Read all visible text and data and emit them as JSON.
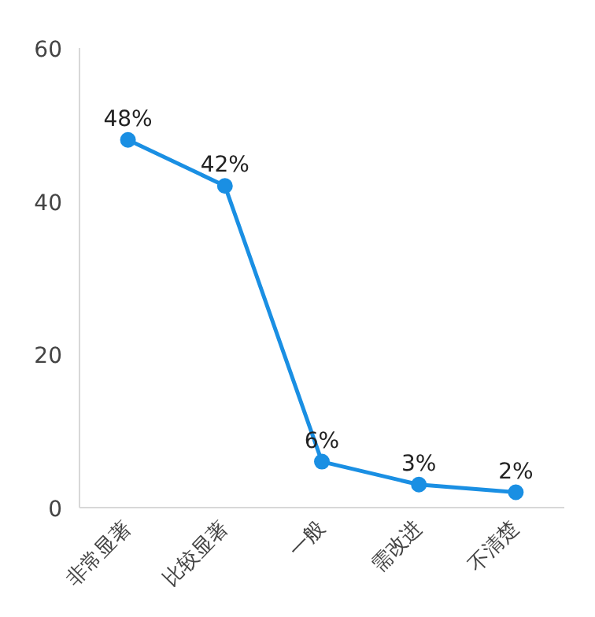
{
  "chart_data": {
    "type": "line",
    "categories": [
      "非常显著",
      "比较显著",
      "一般",
      "需改进",
      "不清楚"
    ],
    "values": [
      48,
      42,
      6,
      3,
      2
    ],
    "value_labels": [
      "48%",
      "42%",
      "6%",
      "3%",
      "2%"
    ],
    "color": "#1a8fe3",
    "marker": "circle",
    "ylim": [
      0,
      60
    ],
    "yticks": [
      0,
      20,
      40,
      60
    ]
  }
}
